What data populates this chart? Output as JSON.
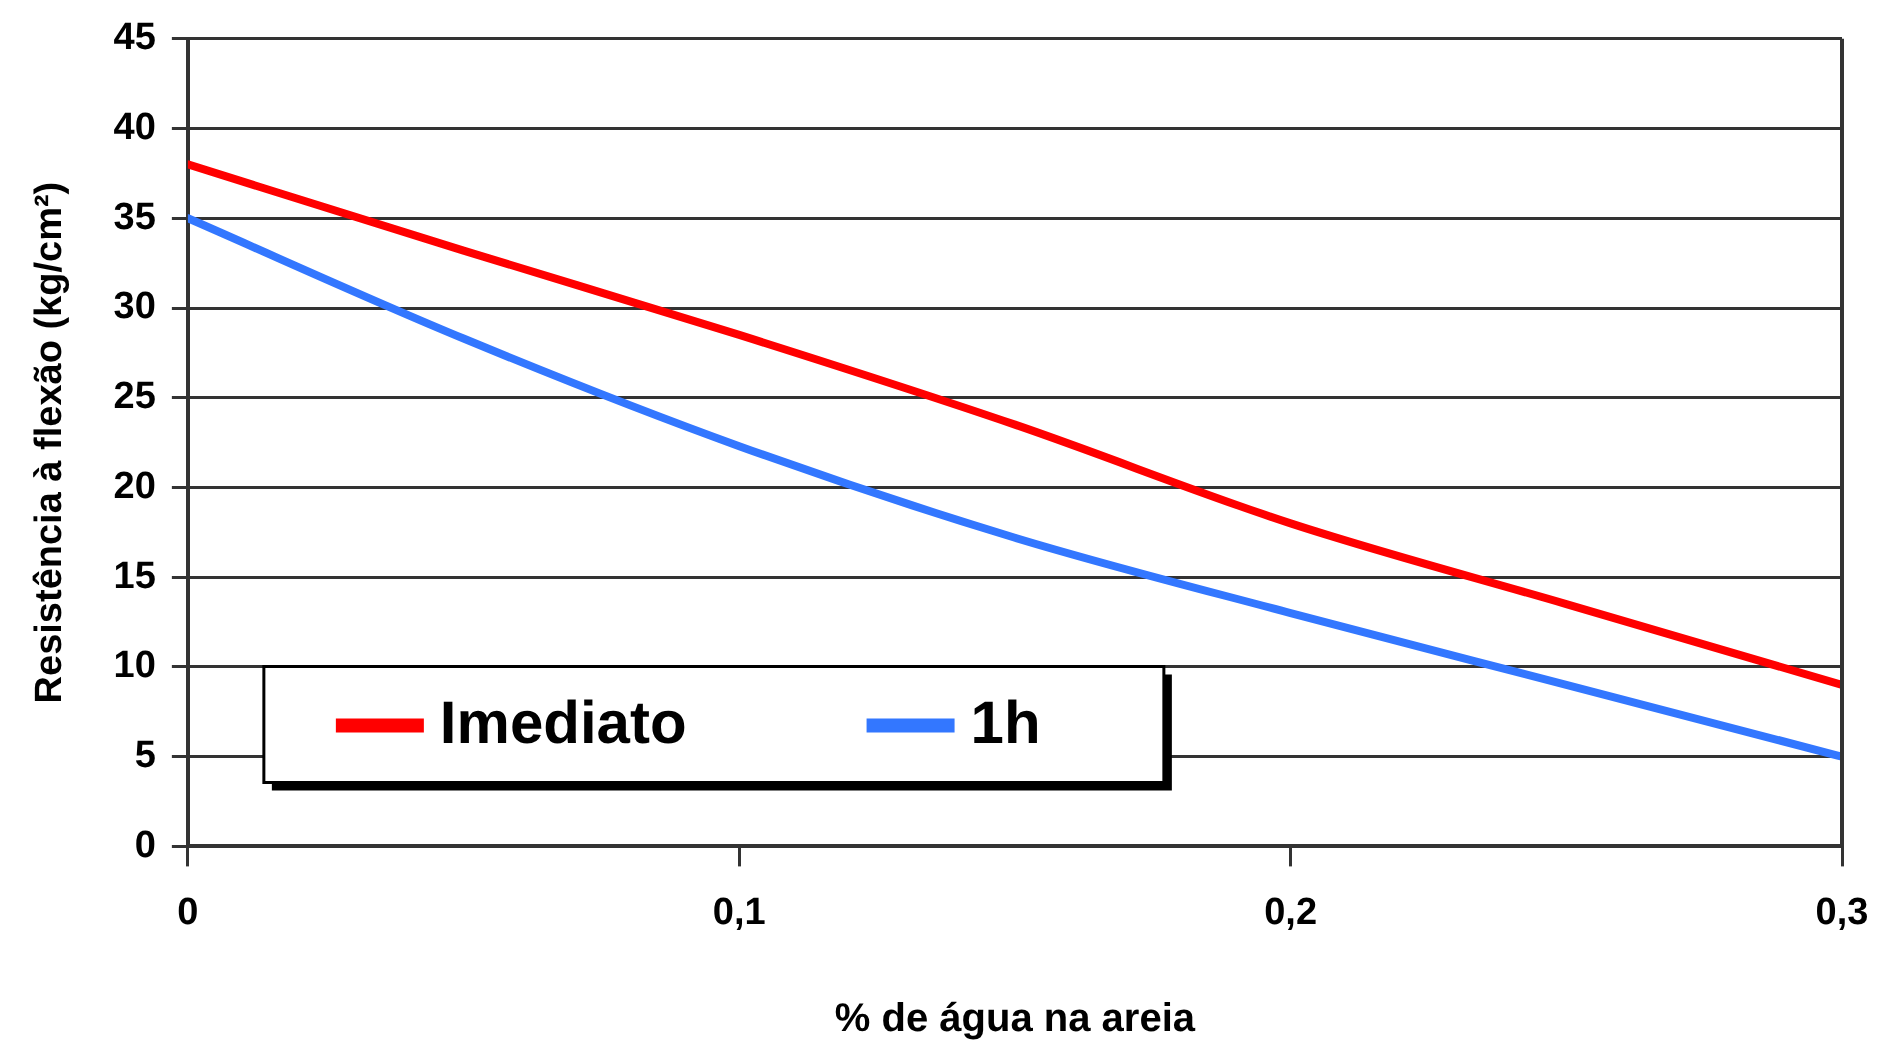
{
  "chart_data": {
    "type": "line",
    "xlabel": "% de água na areia",
    "ylabel": "Resistência à flexão (kg/cm²)",
    "x": [
      0,
      0.05,
      0.1,
      0.15,
      0.2,
      0.25,
      0.3
    ],
    "series": [
      {
        "name": "Imediato",
        "color": "#ff0000",
        "values": [
          38,
          33.2,
          28.5,
          23.5,
          18,
          13.5,
          9
        ]
      },
      {
        "name": "1h",
        "color": "#3377ff",
        "values": [
          35,
          28.3,
          22.3,
          17.2,
          13,
          9,
          5
        ]
      }
    ],
    "xlim": [
      0,
      0.3
    ],
    "xticks": [
      0,
      {
        "value": 0.1,
        "label": "0,1"
      },
      {
        "value": 0.2,
        "label": "0,2"
      },
      {
        "value": 0.3,
        "label": "0,3"
      }
    ],
    "ylim": [
      0,
      45
    ],
    "yticks": [
      0,
      5,
      10,
      15,
      20,
      25,
      30,
      35,
      40,
      45
    ],
    "grid": "y",
    "legend": "bottom left",
    "marker": "none",
    "line_style": "solid"
  }
}
